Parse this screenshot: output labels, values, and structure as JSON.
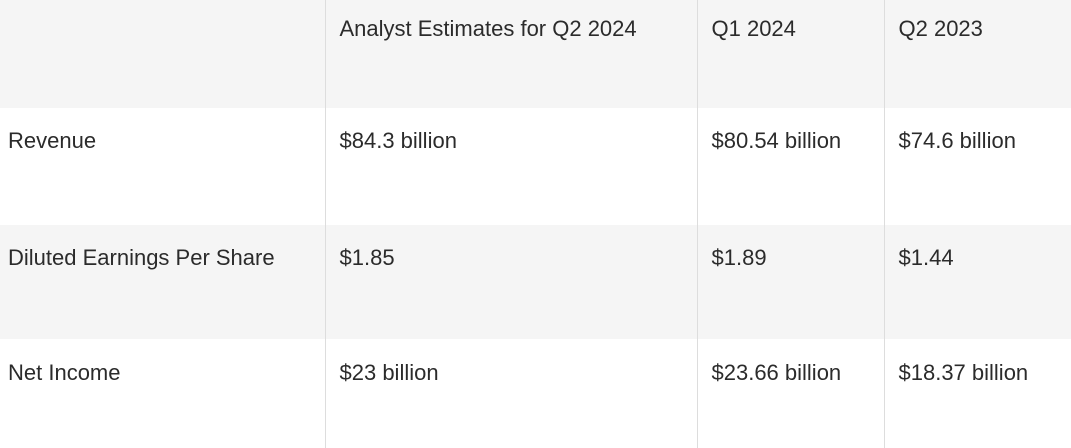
{
  "table": {
    "headers": [
      "",
      "Analyst Estimates for Q2 2024",
      "Q1 2024",
      "Q2 2023"
    ],
    "rows": [
      [
        "Revenue",
        "$84.3 billion",
        "$80.54 billion",
        "$74.6 billion"
      ],
      [
        "Diluted Earnings Per Share",
        "$1.85",
        "$1.89",
        "$1.44"
      ],
      [
        "Net Income",
        "$23 billion",
        "$23.66 billion",
        "$18.37 billion"
      ]
    ]
  }
}
